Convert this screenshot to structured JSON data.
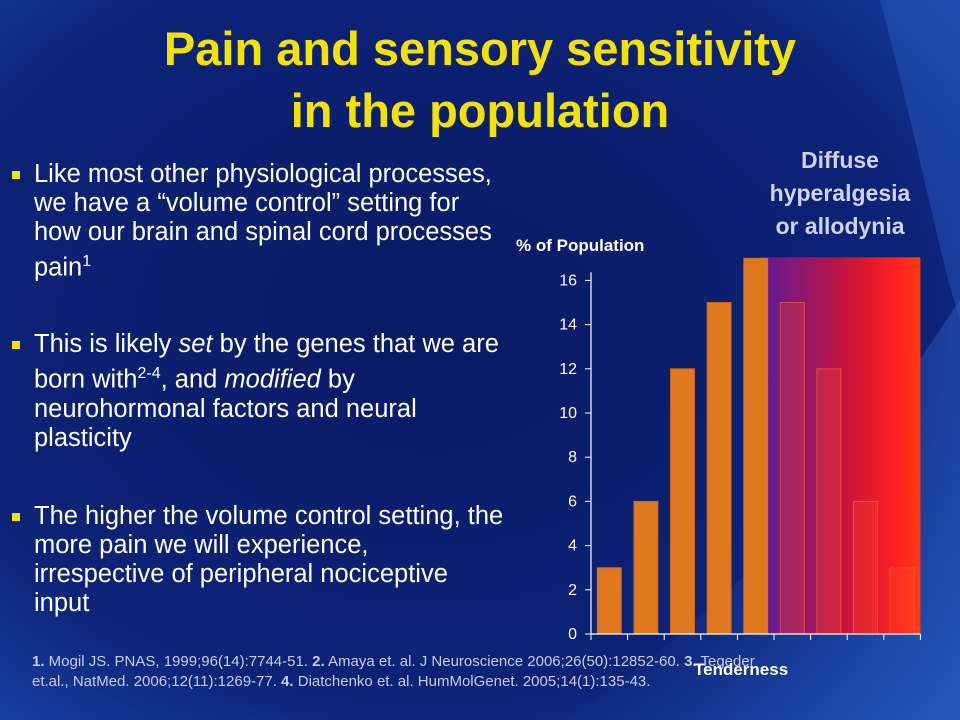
{
  "slide": {
    "title_line1": "Pain and sensory sensitivity",
    "title_line2": "in the population",
    "bullets": [
      {
        "id": "b1"
      },
      {
        "id": "b2"
      },
      {
        "id": "b3"
      }
    ],
    "bullet1": {
      "a": "Like most other physiological processes, we have a “volume control” setting for how our brain and spinal cord processes pain",
      "sup": "1"
    },
    "bullet2": {
      "a": "This is likely ",
      "em1": "set",
      "b": " by the genes that we are born with",
      "sup": "2-4",
      "c": ", and ",
      "em2": "modified",
      "d": " by neurohormonal factors and neural plasticity"
    },
    "bullet3": {
      "a": "The higher the volume control setting, the more pain we will experience, irrespective of peripheral nociceptive input"
    },
    "refs": {
      "n1": "1.",
      "r1": " Mogil JS.  PNAS, 1999;96(14):7744-51. ",
      "n2": "2.",
      "r2": " Amaya et. al. J Neuroscience 2006;26(50):12852-60. ",
      "n3": "3.",
      "r3": "  Tegeder et.al., NatMed. 2006;12(11):1269-77. ",
      "n4": "4.",
      "r4": " Diatchenko et. al. HumMolGenet. 2005;14(1):135-43."
    },
    "diffuse_line1": "Diffuse",
    "diffuse_line2": "hyperalgesia",
    "diffuse_line3": "or allodynia",
    "bullet_color": "#f4e300",
    "title_color": "#f4e300"
  },
  "chart_data": {
    "type": "bar",
    "categories": [
      "",
      "",
      "",
      "",
      "",
      "",
      "",
      "",
      ""
    ],
    "values": [
      3,
      6,
      12,
      15,
      17,
      15,
      12,
      6,
      3
    ],
    "ylabel": "% of Population",
    "xlabel": "Tenderness",
    "yticks": [
      "0",
      "2",
      "4",
      "6",
      "8",
      "10",
      "12",
      "14",
      "16"
    ],
    "ylim": [
      0,
      17
    ],
    "grid": false,
    "bar_color": "#e07820",
    "highlight_region": {
      "label": "Diffuse hyperalgesia or allodynia",
      "from_bar": 4,
      "to_bar": 8,
      "colors": [
        "#7a1fa0",
        "#ff1010"
      ]
    }
  }
}
